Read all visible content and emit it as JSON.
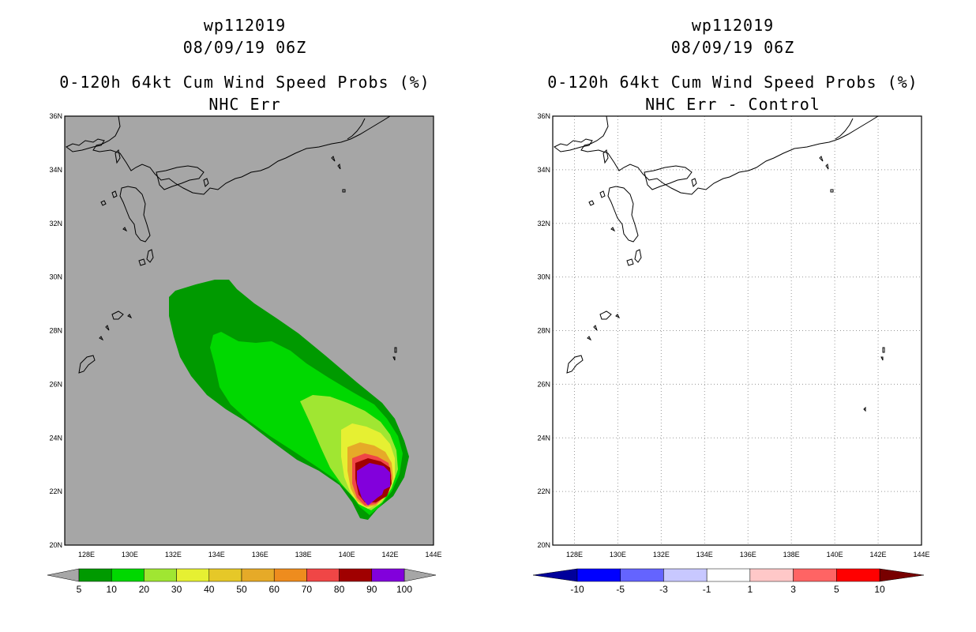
{
  "left_panel": {
    "title_line1": "wp112019",
    "title_line2": "08/09/19 06Z",
    "title_line3": "0-120h 64kt Cum Wind Speed Probs (%)",
    "title_line4": "NHC Err",
    "background_color": "#a6a6a6"
  },
  "right_panel": {
    "title_line1": "wp112019",
    "title_line2": "08/09/19 06Z",
    "title_line3": "0-120h 64kt Cum Wind Speed Probs (%)",
    "title_line4": "NHC Err - Control",
    "background_color": "#ffffff"
  },
  "axes": {
    "lat_labels": [
      "36N",
      "34N",
      "32N",
      "30N",
      "28N",
      "26N",
      "24N",
      "22N",
      "20N"
    ],
    "lon_labels": [
      "128E",
      "130E",
      "132E",
      "134E",
      "136E",
      "138E",
      "140E",
      "142E",
      "144E"
    ]
  },
  "prob_colorbar": {
    "labels": [
      "5",
      "10",
      "20",
      "30",
      "40",
      "50",
      "60",
      "70",
      "80",
      "90",
      "100"
    ],
    "colors": [
      "#009a00",
      "#00d800",
      "#a0e632",
      "#e6f032",
      "#e6c828",
      "#e6aa28",
      "#ee8c1e",
      "#f04646",
      "#a00000",
      "#8200dc"
    ],
    "under_color": "#a6a6a6",
    "over_color": "#a6a6a6"
  },
  "diff_colorbar": {
    "labels": [
      "-10",
      "-5",
      "-3",
      "-1",
      "1",
      "3",
      "5",
      "10"
    ],
    "colors": [
      "#0000ff",
      "#6464ff",
      "#c8c8ff",
      "#ffffff",
      "#ffc8c8",
      "#ff6464",
      "#ff0000"
    ],
    "under_color": "#00009b",
    "over_color": "#780000"
  },
  "prob_contours": [
    {
      "level": "5",
      "color": "#009a00"
    },
    {
      "level": "10",
      "color": "#00d800"
    },
    {
      "level": "20",
      "color": "#a0e632"
    },
    {
      "level": "30",
      "color": "#e6f032"
    },
    {
      "level": "50",
      "color": "#e6aa28"
    },
    {
      "level": "70",
      "color": "#f04646"
    },
    {
      "level": "80",
      "color": "#a00000"
    },
    {
      "level": "90",
      "color": "#8200dc"
    }
  ]
}
